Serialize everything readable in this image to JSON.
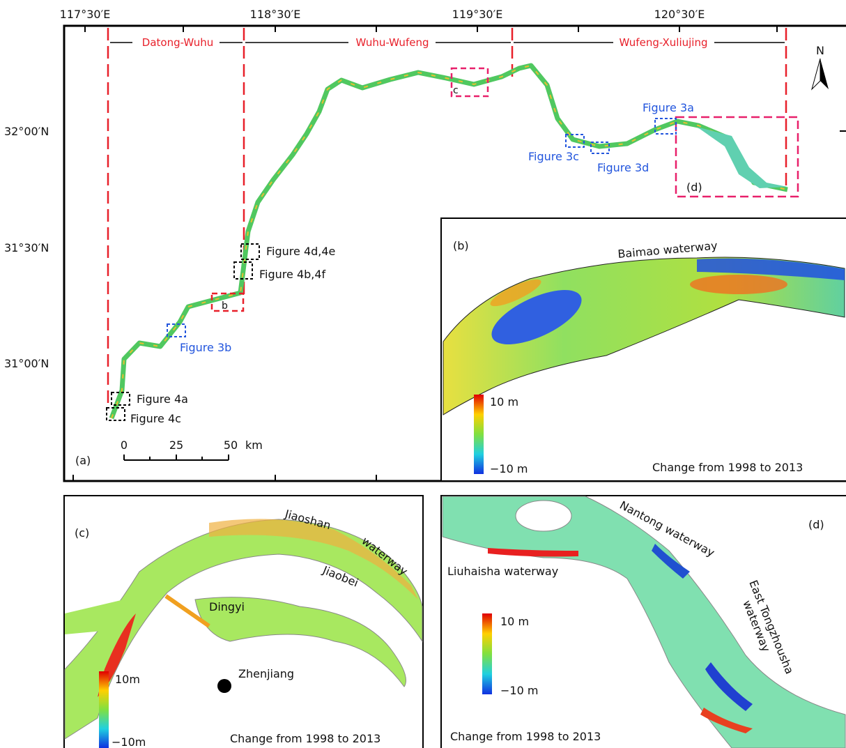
{
  "panel_a": {
    "label": "(a)",
    "lon_ticks": [
      "117°30′E",
      "118°30′E",
      "119°30′E",
      "120°30′E"
    ],
    "lat_ticks": [
      "32°00′N",
      "31°30′N",
      "31°00′N"
    ],
    "reaches": [
      "Datong-Wuhu",
      "Wuhu-Wufeng",
      "Wufeng-Xuliujing"
    ],
    "boxes": [
      "c",
      "b",
      "(d)"
    ],
    "figures": [
      "Figure 3a",
      "Figure 3b",
      "Figure 3c",
      "Figure 3d",
      "Figure 4a",
      "Figure 4c",
      "Figure 4d,4e",
      "Figure 4b,4f"
    ],
    "scale": [
      "0",
      "25",
      "50",
      "km"
    ],
    "north": "N"
  },
  "panel_b": {
    "label": "(b)",
    "waterway": "Baimao waterway",
    "colorbar": [
      "10 m",
      "−10 m"
    ],
    "caption": "Change from 1998 to 2013"
  },
  "panel_c": {
    "label": "(c)",
    "places": [
      "Jiaoshan",
      "waterway",
      "Jiaobei",
      "Dingyi",
      "Zhenjiang"
    ],
    "colorbar": [
      "10m",
      "−10m"
    ],
    "caption": "Change from 1998 to 2013"
  },
  "panel_d": {
    "label": "(d)",
    "places": [
      "Nantong waterway",
      "Liuhaisha waterway",
      "East Tongzhousha",
      "waterway"
    ],
    "colorbar": [
      "10 m",
      "−10 m"
    ],
    "caption": "Change from 1998 to 2013"
  }
}
